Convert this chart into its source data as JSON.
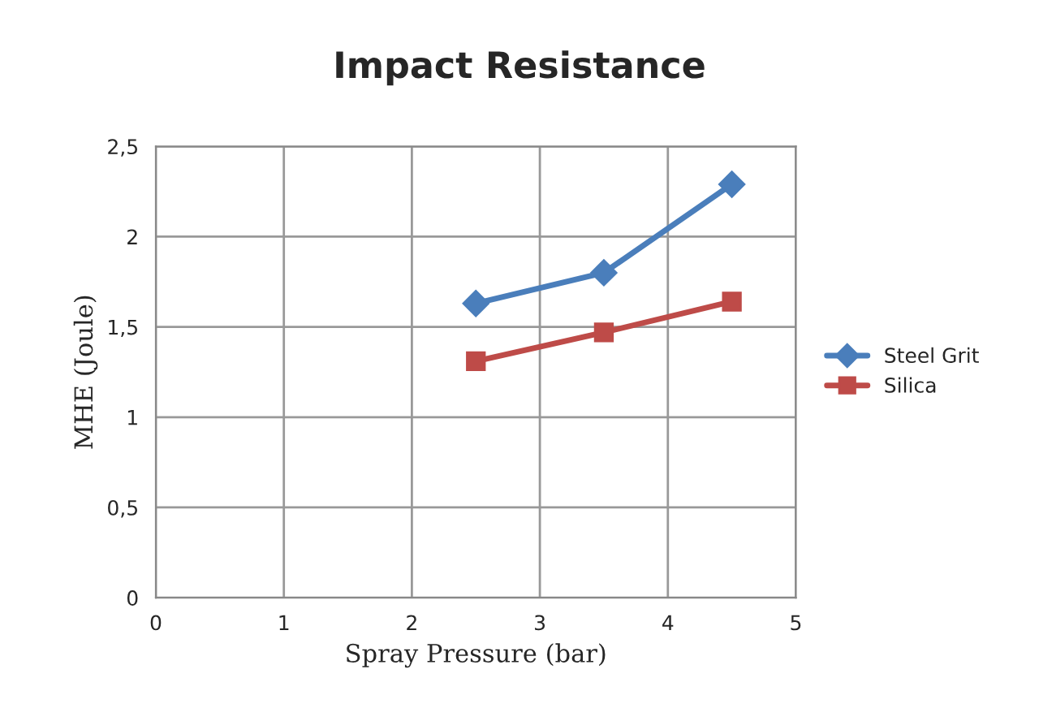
{
  "chart_data": {
    "type": "line",
    "title": "Impact Resistance",
    "xlabel": "Spray Pressure (bar)",
    "ylabel": "MHE (Joule)",
    "x": [
      2.5,
      3.5,
      4.5
    ],
    "series": [
      {
        "name": "Steel Grit",
        "color": "#4a7ebb",
        "values": [
          1.63,
          1.8,
          2.29
        ],
        "marker": "diamond"
      },
      {
        "name": "Silica",
        "color": "#be4b48",
        "values": [
          1.31,
          1.47,
          1.64
        ],
        "marker": "square"
      }
    ],
    "xlim": [
      0,
      5
    ],
    "xticks": [
      0,
      1,
      2,
      3,
      4,
      5
    ],
    "ylim": [
      0,
      2.5
    ],
    "yticks": [
      0,
      {
        "value": 0.5,
        "label": "0,5"
      },
      1,
      {
        "value": 1.5,
        "label": "1,5"
      },
      2,
      {
        "value": 2.5,
        "label": "2,5"
      }
    ],
    "grid": true,
    "legend": "right",
    "line_style": "solid"
  }
}
